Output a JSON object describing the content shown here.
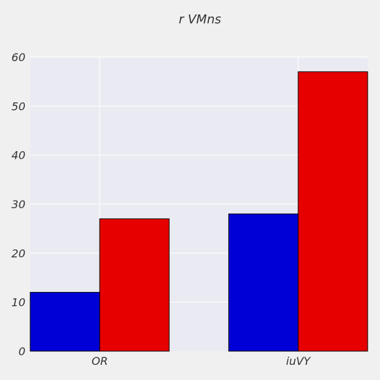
{
  "chart_data": {
    "type": "bar",
    "title": "r VMns",
    "xlabel": "",
    "ylabel": "",
    "categories": [
      "OR",
      "iuVY"
    ],
    "series": [
      {
        "values": [
          12,
          28
        ],
        "color": "#0000d6"
      },
      {
        "values": [
          27,
          57
        ],
        "color": "#e60000"
      }
    ],
    "ylim": [
      0,
      60
    ],
    "yticks": [
      "0",
      "10",
      "20",
      "30",
      "40",
      "50",
      "60"
    ],
    "grid": true,
    "legend": "none",
    "colors": {
      "page_background": "#f0f0f0",
      "plot_background": "#eaeaf2",
      "grid": "#ffffff"
    }
  }
}
